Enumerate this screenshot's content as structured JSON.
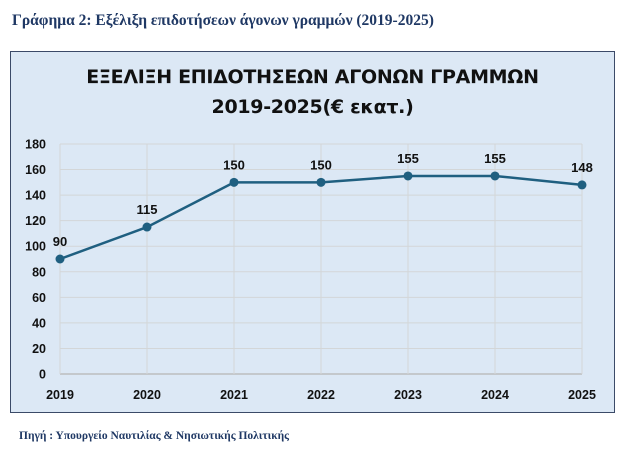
{
  "heading": "Γράφημα 2: Εξέλιξη επιδοτήσεων άγονων γραμμών (2019-2025)",
  "source": "Πηγή : Υπουργείο Ναυτιλίας & Νησιωτικής Πολιτικής",
  "colors": {
    "line": "#1f5f80",
    "background": "#dce8f5",
    "heading": "#1f3864"
  },
  "chart_data": {
    "type": "line",
    "title_line1": "ΕΞΕΛΙΞΗ ΕΠΙΔΟΤΗΣΕΩΝ ΑΓΟΝΩΝ ΓΡΑΜΜΩΝ",
    "title_line2": "2019-2025(€ εκατ.)",
    "categories": [
      "2019",
      "2020",
      "2021",
      "2022",
      "2023",
      "2024",
      "2025"
    ],
    "values": [
      90,
      115,
      150,
      150,
      155,
      155,
      148
    ],
    "data_labels": [
      "90",
      "115",
      "150",
      "150",
      "155",
      "155",
      "148"
    ],
    "yticks": [
      "0",
      "20",
      "40",
      "60",
      "80",
      "100",
      "120",
      "140",
      "160",
      "180"
    ],
    "ylim": [
      0,
      180
    ],
    "grid": true,
    "xlabel": "",
    "ylabel": ""
  }
}
